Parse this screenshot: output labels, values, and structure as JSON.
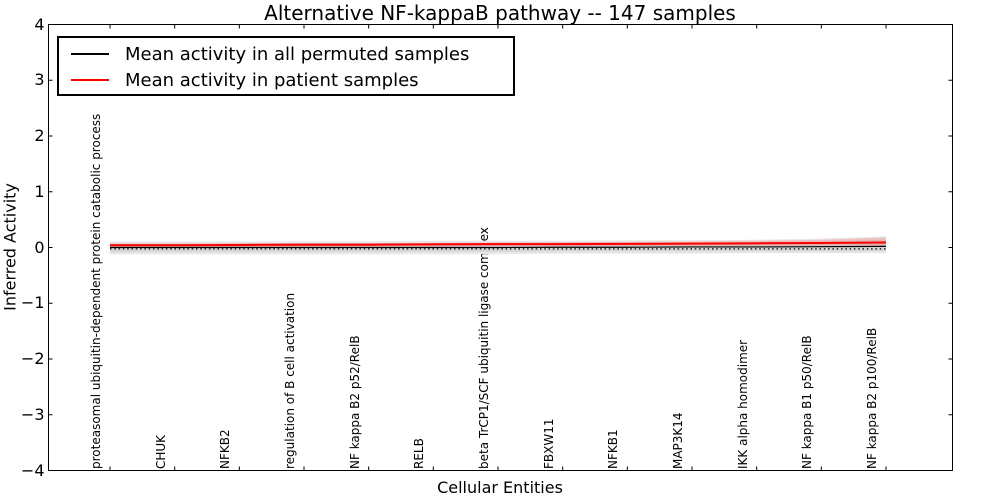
{
  "figure": {
    "title": "Alternative NF-kappaB pathway -- 147 samples",
    "xlabel": "Cellular Entities",
    "ylabel": "Inferred Activity"
  },
  "legend": {
    "position": "upper left",
    "items": [
      {
        "label": "Mean activity in all permuted samples",
        "color": "#000000"
      },
      {
        "label": "Mean activity in patient samples",
        "color": "#ff0000"
      }
    ]
  },
  "chart_data": {
    "type": "line",
    "title": "Alternative NF-kappaB pathway -- 147 samples",
    "xlabel": "Cellular Entities",
    "ylabel": "Inferred Activity",
    "ylim": [
      -4,
      4
    ],
    "yticks": [
      -4,
      -3,
      -2,
      -1,
      0,
      1,
      2,
      3,
      4
    ],
    "grid": false,
    "legend_position": "upper left",
    "categories": [
      "proteasomal ubiquitin-dependent protein catabolic process",
      "CHUK",
      "NFKB2",
      "regulation of B cell activation",
      "NF kappa B2 p52/RelB",
      "RELB",
      "beta TrCP1/SCF ubiquitin ligase complex",
      "FBXW11",
      "NFKB1",
      "MAP3K14",
      "IKK alpha homodimer",
      "NF kappa B1 p50/RelB",
      "NF kappa B2 p100/RelB"
    ],
    "series": [
      {
        "name": "Mean activity in all permuted samples",
        "color": "#000000",
        "style": "solid",
        "values": [
          0.0,
          0.0,
          0.0,
          0.0,
          0.0,
          0.0,
          0.0,
          0.005,
          0.005,
          0.01,
          0.01,
          0.015,
          0.02
        ]
      },
      {
        "name": "Mean activity in patient samples",
        "color": "#ff0000",
        "style": "solid",
        "values": [
          0.04,
          0.04,
          0.045,
          0.05,
          0.05,
          0.055,
          0.06,
          0.06,
          0.065,
          0.07,
          0.075,
          0.08,
          0.09
        ]
      },
      {
        "name": "zero reference (dotted)",
        "color": "#000000",
        "style": "dotted",
        "values": [
          -0.025,
          -0.025,
          -0.025,
          -0.025,
          -0.025,
          -0.025,
          -0.025,
          -0.025,
          -0.025,
          -0.025,
          -0.025,
          -0.025,
          -0.025
        ]
      }
    ],
    "bands": [
      {
        "name": "permuted-samples-std-outer",
        "color": "#e8e8e8",
        "upper": [
          0.11,
          0.11,
          0.11,
          0.11,
          0.11,
          0.12,
          0.12,
          0.12,
          0.13,
          0.13,
          0.14,
          0.16,
          0.2
        ],
        "lower": [
          -0.12,
          -0.12,
          -0.12,
          -0.12,
          -0.12,
          -0.12,
          -0.12,
          -0.11,
          -0.11,
          -0.11,
          -0.1,
          -0.1,
          -0.1
        ]
      },
      {
        "name": "permuted-samples-std-inner",
        "color": "#d7d7d7",
        "upper": [
          0.075,
          0.075,
          0.075,
          0.08,
          0.08,
          0.08,
          0.085,
          0.085,
          0.09,
          0.09,
          0.1,
          0.11,
          0.14
        ],
        "lower": [
          -0.085,
          -0.085,
          -0.085,
          -0.085,
          -0.08,
          -0.08,
          -0.08,
          -0.075,
          -0.075,
          -0.075,
          -0.07,
          -0.07,
          -0.07
        ]
      },
      {
        "name": "patient-samples-std",
        "color": "rgba(255,70,70,0.25)",
        "upper": [
          0.07,
          0.07,
          0.075,
          0.08,
          0.08,
          0.085,
          0.09,
          0.095,
          0.1,
          0.11,
          0.12,
          0.14,
          0.18
        ],
        "lower": [
          0.0,
          0.0,
          0.005,
          0.01,
          0.01,
          0.015,
          0.02,
          0.02,
          0.025,
          0.03,
          0.03,
          0.03,
          0.03
        ]
      }
    ]
  }
}
